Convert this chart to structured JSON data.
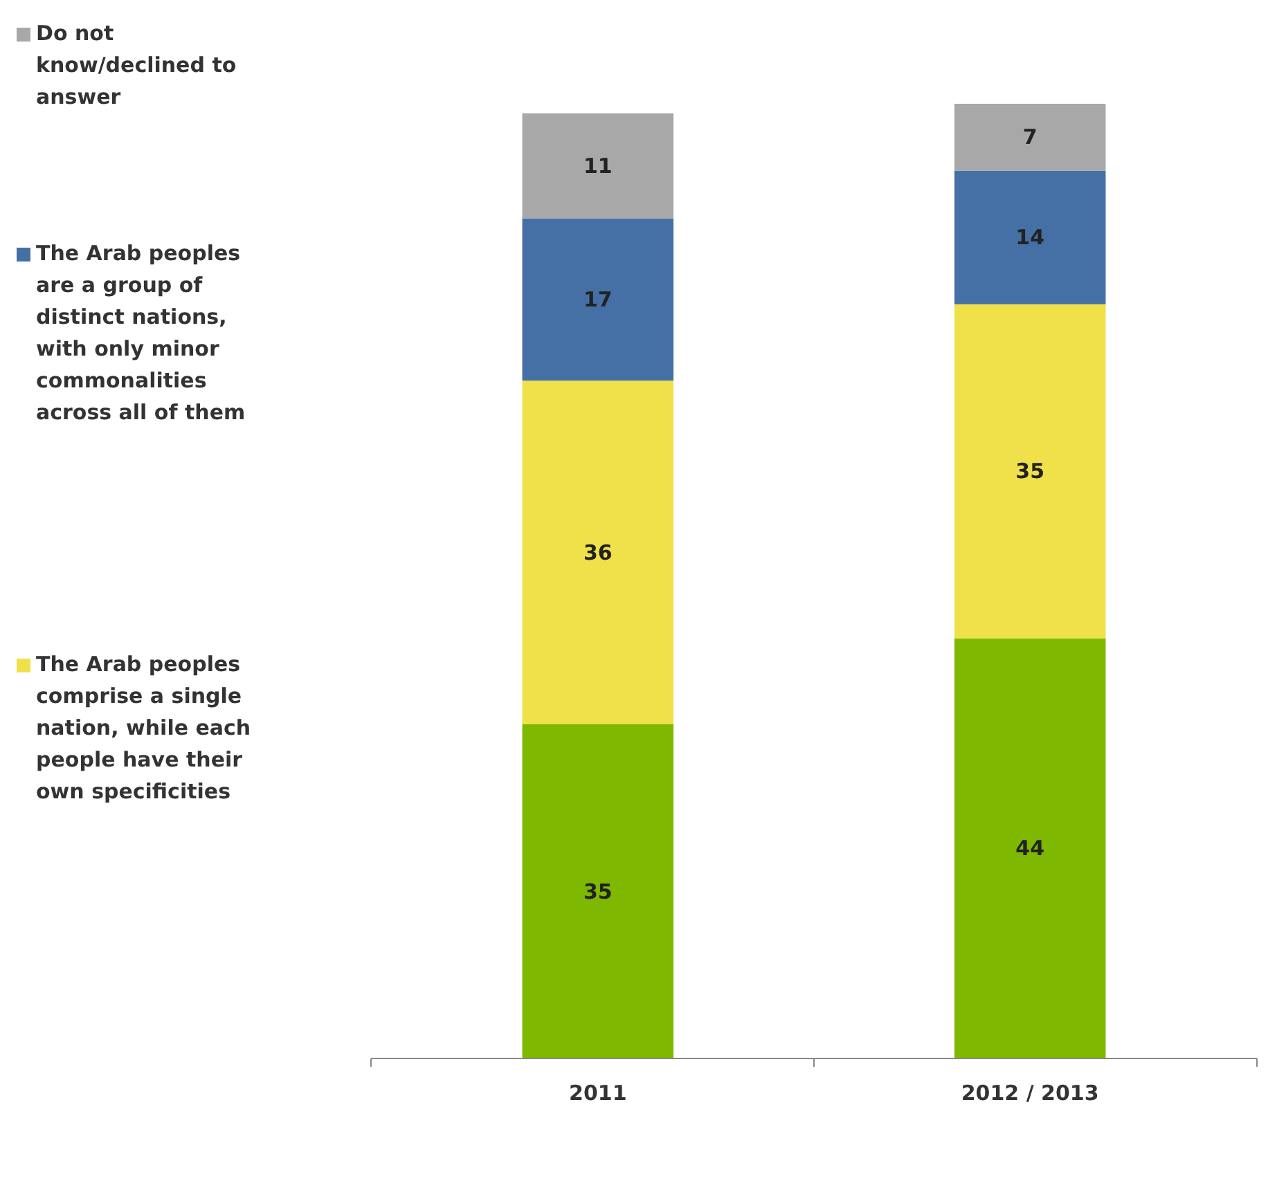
{
  "chart_data": {
    "type": "bar",
    "stacked": true,
    "categories": [
      "2011",
      "2012 / 2013"
    ],
    "data_labels": true,
    "legend": "left",
    "series": [
      {
        "color": "#7fb800",
        "values": [
          35,
          44
        ]
      },
      {
        "name": "The Arab peoples comprise a single nation, while each people have their own specificities",
        "color": "#f0e04a",
        "values": [
          36,
          35
        ]
      },
      {
        "name": "The Arab peoples are a group of distinct nations, with only minor commonalities across all of them",
        "color": "#4470a6",
        "values": [
          17,
          14
        ]
      },
      {
        "name": "Do not know/declined to answer",
        "color": "#a8a8a8",
        "values": [
          11,
          7
        ]
      }
    ]
  }
}
